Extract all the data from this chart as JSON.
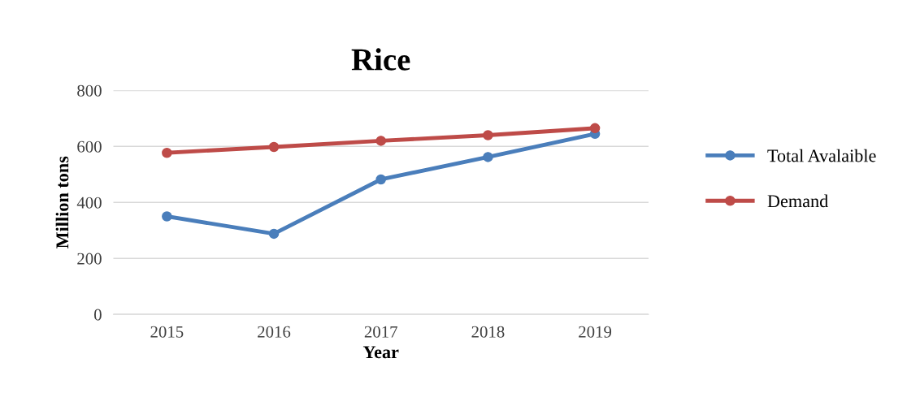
{
  "chart_data": {
    "type": "line",
    "title": "Rice",
    "xlabel": "Year",
    "ylabel": "Million tons",
    "categories": [
      "2015",
      "2016",
      "2017",
      "2018",
      "2019"
    ],
    "series": [
      {
        "name": "Total Avalaible",
        "color": "#4a7ebb",
        "values": [
          350,
          288,
          482,
          562,
          645
        ]
      },
      {
        "name": "Demand",
        "color": "#be4b48",
        "values": [
          577,
          598,
          620,
          640,
          665
        ]
      }
    ],
    "ylim": [
      0,
      800
    ],
    "yticks": [
      0,
      200,
      400,
      600,
      800
    ],
    "grid": "y",
    "legend": "right",
    "marker": "circle"
  }
}
